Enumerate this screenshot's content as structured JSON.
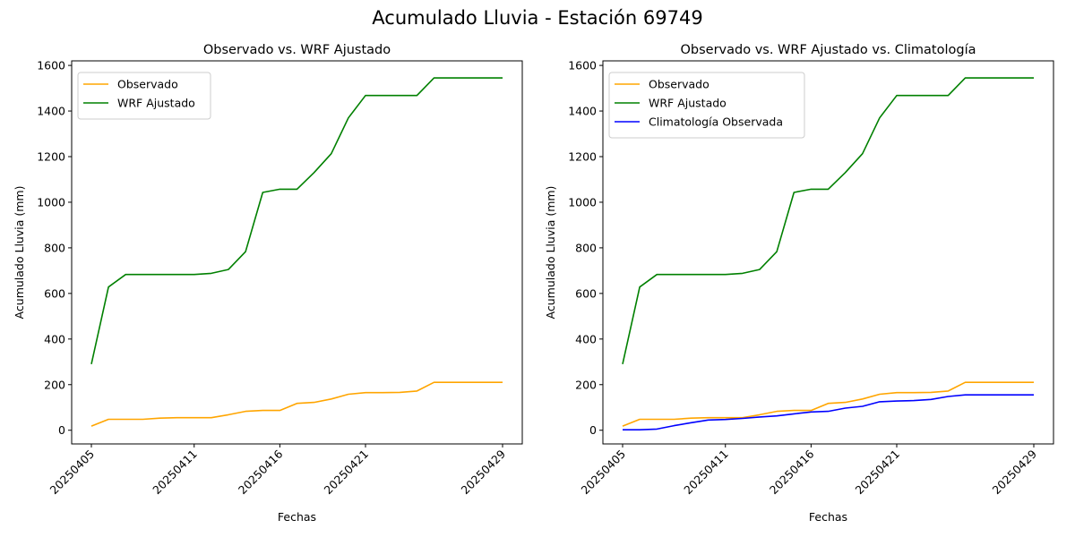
{
  "figure": {
    "title": "Acumulado Lluvia - Estación 69749"
  },
  "chart_data": [
    {
      "type": "line",
      "title": "Observado vs. WRF Ajustado",
      "xlabel": "Fechas",
      "ylabel": "Acumulado Lluvia (mm)",
      "ylim": [
        -60,
        1620
      ],
      "yticks": [
        0,
        200,
        400,
        600,
        800,
        1000,
        1200,
        1400,
        1600
      ],
      "xticks": [
        "20250405",
        "20250411",
        "20250416",
        "20250421",
        "20250429"
      ],
      "legend": "upper-left",
      "x": [
        "20250405",
        "20250406",
        "20250407",
        "20250408",
        "20250409",
        "20250410",
        "20250411",
        "20250412",
        "20250413",
        "20250414",
        "20250415",
        "20250416",
        "20250417",
        "20250418",
        "20250419",
        "20250420",
        "20250421",
        "20250422",
        "20250423",
        "20250424",
        "20250425",
        "20250429"
      ],
      "series": [
        {
          "name": "Observado",
          "color": "#ffa500",
          "values": [
            18,
            48,
            48,
            48,
            53,
            55,
            55,
            55,
            68,
            83,
            87,
            87,
            118,
            122,
            137,
            158,
            165,
            165,
            166,
            172,
            210,
            210
          ]
        },
        {
          "name": "WRF Ajustado",
          "color": "#008000",
          "values": [
            290,
            628,
            683,
            683,
            683,
            683,
            683,
            688,
            705,
            783,
            1043,
            1057,
            1057,
            1130,
            1213,
            1370,
            1468,
            1468,
            1468,
            1468,
            1545,
            1545
          ]
        }
      ]
    },
    {
      "type": "line",
      "title": "Observado vs. WRF Ajustado vs. Climatología",
      "xlabel": "Fechas",
      "ylabel": "Acumulado Lluvia (mm)",
      "ylim": [
        -60,
        1620
      ],
      "yticks": [
        0,
        200,
        400,
        600,
        800,
        1000,
        1200,
        1400,
        1600
      ],
      "xticks": [
        "20250405",
        "20250411",
        "20250416",
        "20250421",
        "20250429"
      ],
      "legend": "upper-left",
      "x": [
        "20250405",
        "20250406",
        "20250407",
        "20250408",
        "20250409",
        "20250410",
        "20250411",
        "20250412",
        "20250413",
        "20250414",
        "20250415",
        "20250416",
        "20250417",
        "20250418",
        "20250419",
        "20250420",
        "20250421",
        "20250422",
        "20250423",
        "20250424",
        "20250425",
        "20250429"
      ],
      "series": [
        {
          "name": "Observado",
          "color": "#ffa500",
          "values": [
            18,
            48,
            48,
            48,
            53,
            55,
            55,
            55,
            68,
            83,
            87,
            87,
            118,
            122,
            137,
            158,
            165,
            165,
            166,
            172,
            210,
            210
          ]
        },
        {
          "name": "WRF Ajustado",
          "color": "#008000",
          "values": [
            290,
            628,
            683,
            683,
            683,
            683,
            683,
            688,
            705,
            783,
            1043,
            1057,
            1057,
            1130,
            1213,
            1370,
            1468,
            1468,
            1468,
            1468,
            1545,
            1545
          ]
        },
        {
          "name": "Climatología Observada",
          "color": "#0000ff",
          "values": [
            2,
            2,
            5,
            20,
            33,
            45,
            47,
            52,
            58,
            63,
            72,
            80,
            83,
            97,
            105,
            125,
            128,
            130,
            135,
            148,
            155,
            155
          ]
        }
      ]
    }
  ]
}
